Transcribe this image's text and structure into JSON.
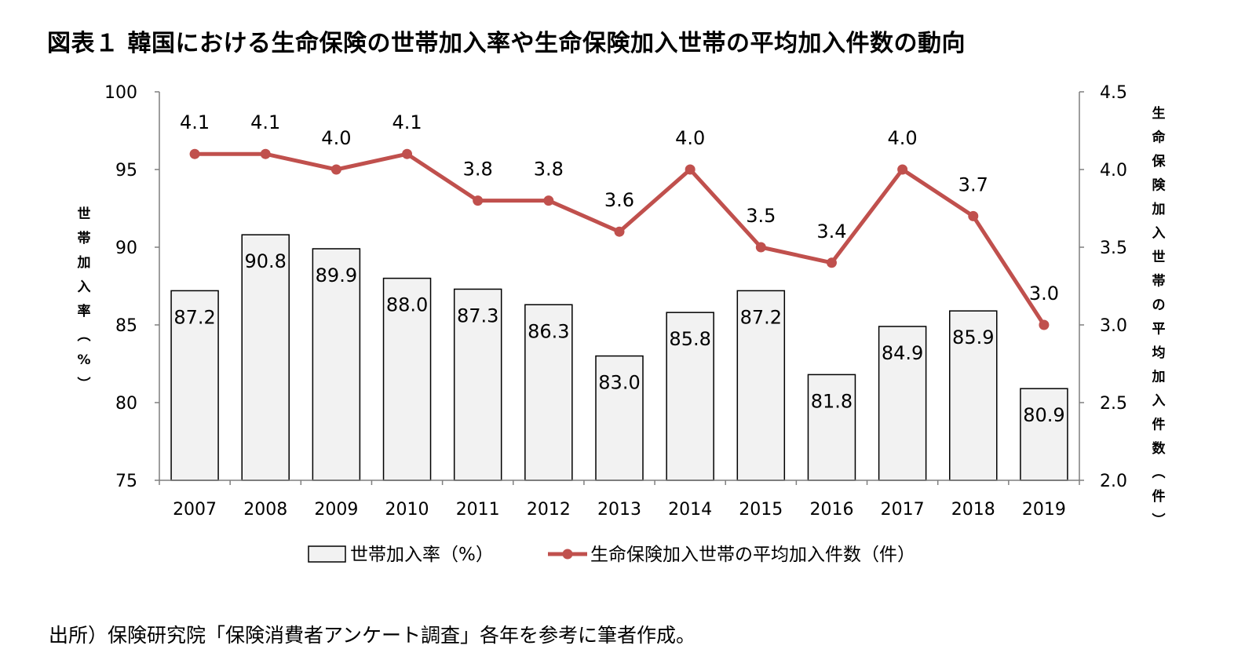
{
  "title": "図表１ 韓国における生命保険の世帯加入率や生命保険加入世帯の平均加入件数の動向",
  "source": "出所）保険研究院「保険消費者アンケート調査」各年を参考に筆者作成。",
  "chart_data": {
    "type": "bar+line",
    "categories": [
      "2007",
      "2008",
      "2009",
      "2010",
      "2011",
      "2012",
      "2013",
      "2014",
      "2015",
      "2016",
      "2017",
      "2018",
      "2019"
    ],
    "series": [
      {
        "name": "世帯加入率（%）",
        "type": "bar",
        "axis": "left",
        "values": [
          87.2,
          90.8,
          89.9,
          88.0,
          87.3,
          86.3,
          83.0,
          85.8,
          87.2,
          81.8,
          84.9,
          85.9,
          80.9
        ],
        "labels": [
          "87.2",
          "90.8",
          "89.9",
          "88.0",
          "87.3",
          "86.3",
          "83.0",
          "85.8",
          "87.2",
          "81.8",
          "84.9",
          "85.9",
          "80.9"
        ],
        "color": "#f2f2f2",
        "border": "#000000"
      },
      {
        "name": "生命保険加入世帯の平均加入件数（件）",
        "type": "line",
        "axis": "right",
        "values": [
          4.1,
          4.1,
          4.0,
          4.1,
          3.8,
          3.8,
          3.6,
          4.0,
          3.5,
          3.4,
          4.0,
          3.7,
          3.0
        ],
        "labels": [
          "4.1",
          "4.1",
          "4.0",
          "4.1",
          "3.8",
          "3.8",
          "3.6",
          "4.0",
          "3.5",
          "3.4",
          "4.0",
          "3.7",
          "3.0"
        ],
        "color": "#c0504d"
      }
    ],
    "left_axis": {
      "label": "世帯加入率（%）",
      "range": [
        75,
        100
      ],
      "ticks": [
        "75",
        "80",
        "85",
        "90",
        "95",
        "100"
      ]
    },
    "right_axis": {
      "label": "生命保険加入世帯の平均加入件数（件）",
      "range": [
        2.0,
        4.5
      ],
      "ticks": [
        "2.0",
        "2.5",
        "3.0",
        "3.5",
        "4.0",
        "4.5"
      ]
    },
    "grid": false,
    "legend_position": "bottom"
  }
}
